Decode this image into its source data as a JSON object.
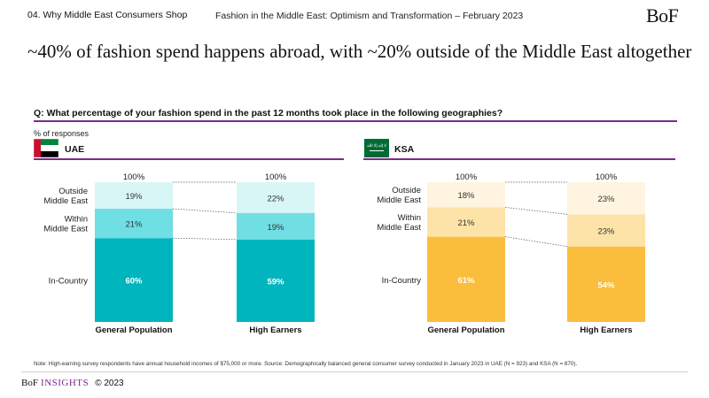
{
  "header": {
    "section": "04. Why Middle East Consumers Shop",
    "report": "Fashion in the Middle East: Optimism and Transformation – February 2023",
    "logo": "BoF"
  },
  "headline": "~40% of fashion spend happens abroad, with ~20% outside of the Middle East altogether",
  "question": "Q: What percentage of your fashion spend in the past 12 months took place in the following geographies?",
  "unit_label": "% of responses",
  "colors": {
    "accent": "#7b2a8c",
    "uae": [
      "#00b5bd",
      "#6fdfe3",
      "#d9f6f7"
    ],
    "ksa": [
      "#fbbd3c",
      "#fde3a8",
      "#fff4e0"
    ]
  },
  "chart_data": [
    {
      "type": "bar",
      "stacked": true,
      "region": "UAE",
      "flag": "uae-flag",
      "categories": [
        "General Population",
        "High Earners"
      ],
      "totals": [
        "100%",
        "100%"
      ],
      "series": [
        {
          "name": "In-Country",
          "values": [
            60,
            59
          ],
          "labels": [
            "60%",
            "59%"
          ]
        },
        {
          "name": "Within Middle East",
          "values": [
            21,
            19
          ],
          "labels": [
            "21%",
            "19%"
          ]
        },
        {
          "name": "Outside Middle East",
          "values": [
            19,
            22
          ],
          "labels": [
            "19%",
            "22%"
          ]
        }
      ],
      "ylim": [
        0,
        100
      ]
    },
    {
      "type": "bar",
      "stacked": true,
      "region": "KSA",
      "flag": "ksa-flag",
      "flag_text": "لا إله إلا الله",
      "categories": [
        "General Population",
        "High Earners"
      ],
      "totals": [
        "100%",
        "100%"
      ],
      "series": [
        {
          "name": "In-Country",
          "values": [
            61,
            54
          ],
          "labels": [
            "61%",
            "54%"
          ]
        },
        {
          "name": "Within Middle East",
          "values": [
            21,
            23
          ],
          "labels": [
            "21%",
            "23%"
          ]
        },
        {
          "name": "Outside Middle East",
          "values": [
            18,
            23
          ],
          "labels": [
            "18%",
            "23%"
          ]
        }
      ],
      "ylim": [
        0,
        100
      ]
    }
  ],
  "series_labels": {
    "outside": [
      "Outside",
      "Middle East"
    ],
    "within": [
      "Within",
      "Middle East"
    ],
    "incountry": "In-Country"
  },
  "note": "Note: High-earning survey respondents have annual household incomes of $75,000 or more. Source: Demographically balanced general consumer survey conducted in January 2023 in UAE (N = 923) and KSA (N = 870).",
  "footer": {
    "brand": "BoF",
    "insights": "INSIGHTS",
    "copyright": "© 2023"
  }
}
